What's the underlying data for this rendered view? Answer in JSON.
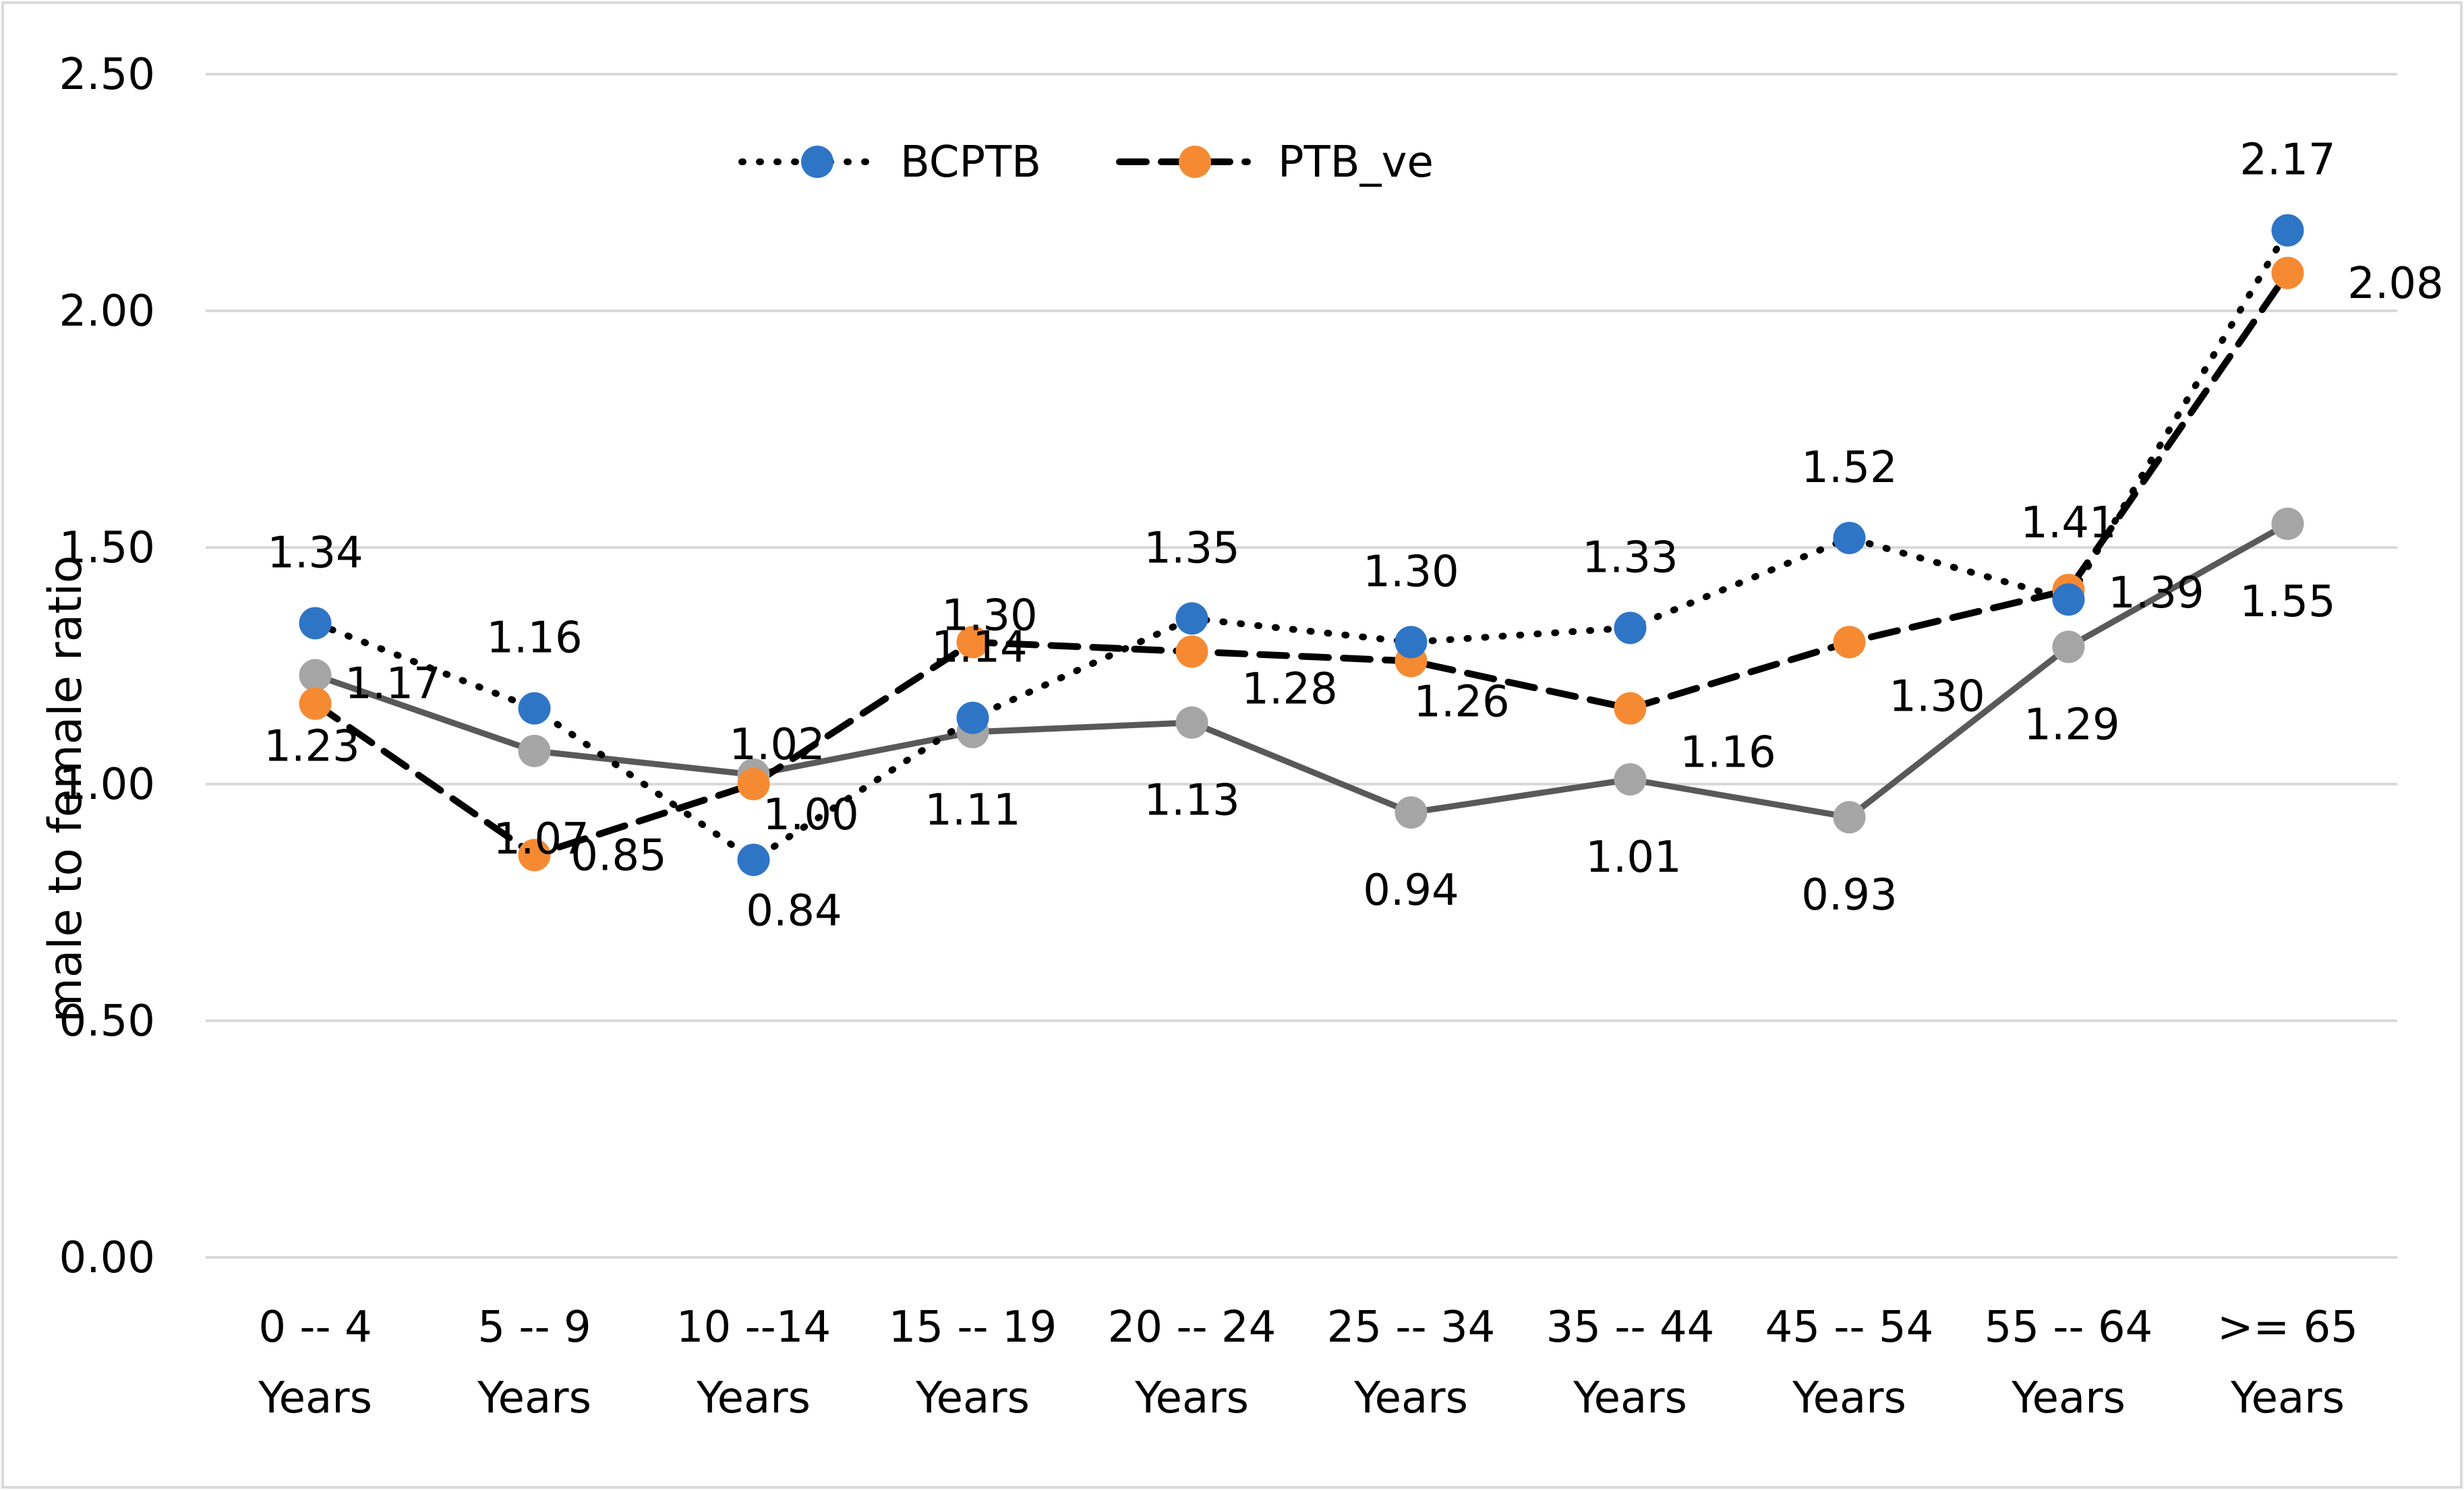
{
  "chart_data": {
    "type": "line",
    "title": "",
    "xlabel": "",
    "ylabel": "male to female ratio",
    "ylim": [
      0,
      2.5
    ],
    "yticks": [
      "0.00",
      "0.50",
      "1.00",
      "1.50",
      "2.00",
      "2.50"
    ],
    "grid": true,
    "legend_position": "top",
    "categories": [
      [
        "0 -- 4",
        "Years"
      ],
      [
        "5 -- 9",
        "Years"
      ],
      [
        "10 --14",
        "Years"
      ],
      [
        "15 -- 19",
        "Years"
      ],
      [
        "20 -- 24",
        "Years"
      ],
      [
        "25 -- 34",
        "Years"
      ],
      [
        "35 -- 44",
        "Years"
      ],
      [
        "45 -- 54",
        "Years"
      ],
      [
        "55 -- 64",
        "Years"
      ],
      [
        ">= 65",
        "Years"
      ]
    ],
    "series": [
      {
        "name": "BCPTB",
        "in_legend": true,
        "color": "#2e75c6",
        "line_color": "#000000",
        "line_style": "dotted",
        "values": [
          1.34,
          1.16,
          0.84,
          1.14,
          1.35,
          1.3,
          1.33,
          1.52,
          1.39,
          2.17
        ],
        "labels": [
          "1.34",
          "1.16",
          "0.84",
          "1.14",
          "1.35",
          "1.30",
          "1.33",
          "1.52",
          "1.39",
          "2.17"
        ]
      },
      {
        "name": "PTB_ve",
        "in_legend": true,
        "color": "#f58a33",
        "line_color": "#000000",
        "line_style": "dashed",
        "values": [
          1.17,
          0.85,
          1.0,
          1.3,
          1.28,
          1.26,
          1.16,
          1.3,
          1.41,
          2.08
        ],
        "labels": [
          "1.17",
          "0.85",
          "1.00",
          "1.30",
          "1.28",
          "1.26",
          "1.16",
          "1.30",
          "1.41",
          "2.08"
        ]
      },
      {
        "name": "",
        "in_legend": false,
        "color": "#a5a5a5",
        "line_color": "#595959",
        "line_style": "solid",
        "values": [
          1.23,
          1.07,
          1.02,
          1.11,
          1.13,
          0.94,
          1.01,
          0.93,
          1.29,
          1.55
        ],
        "labels": [
          "1.23",
          "1.07",
          "1.02",
          "1.11",
          "1.13",
          "0.94",
          "1.01",
          "0.93",
          "1.29",
          "1.55"
        ]
      }
    ]
  }
}
